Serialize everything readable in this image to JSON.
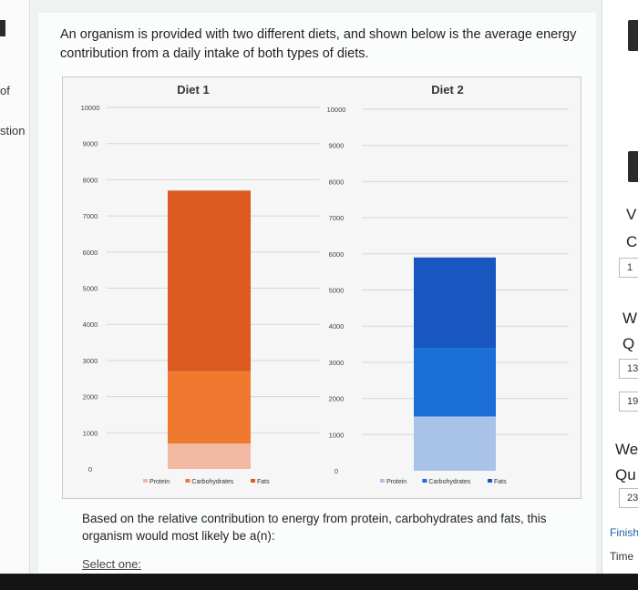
{
  "left_sidebar": {
    "text_top": "of",
    "text_mid": "stion"
  },
  "question": {
    "text": "An organism is provided with two different diets, and shown below is the average energy contribution from a daily intake of both types of diets."
  },
  "chart_data": [
    {
      "type": "bar",
      "stacked": true,
      "title": "Diet 1",
      "categories": [
        "Diet 1"
      ],
      "series": [
        {
          "name": "Protein",
          "values": [
            700
          ],
          "color": "#f2b9a2"
        },
        {
          "name": "Carbohydrates",
          "values": [
            2000
          ],
          "color": "#ef7a2f"
        },
        {
          "name": "Fats",
          "values": [
            5000
          ],
          "color": "#dc5a1f"
        }
      ],
      "ylim": [
        0,
        10000
      ],
      "yticks": [
        "0",
        "1000",
        "2000",
        "3000",
        "4000",
        "5000",
        "6000",
        "7000",
        "8000",
        "9000",
        "10000"
      ],
      "legend": [
        "Protein",
        "Carbohydrates",
        "Fats"
      ],
      "legend_position": "bottom",
      "grid": true
    },
    {
      "type": "bar",
      "stacked": true,
      "title": "Diet 2",
      "categories": [
        "Diet 2"
      ],
      "series": [
        {
          "name": "Protein",
          "values": [
            1500
          ],
          "color": "#a9c3e8"
        },
        {
          "name": "Carbohydrates",
          "values": [
            1900
          ],
          "color": "#1d6fd8"
        },
        {
          "name": "Fats",
          "values": [
            2500
          ],
          "color": "#1757bf"
        }
      ],
      "ylim": [
        0,
        10000
      ],
      "yticks": [
        "0",
        "1000",
        "2000",
        "3000",
        "4000",
        "5000",
        "6000",
        "7000",
        "8000",
        "9000",
        "10000"
      ],
      "legend": [
        "Protein",
        "Carbohydrates",
        "Fats"
      ],
      "legend_position": "bottom",
      "grid": true
    }
  ],
  "prompt": {
    "text": "Based on the relative contribution to energy from protein, carbohydrates and fats, this organism would most likely be a(n):"
  },
  "select": {
    "label": "Select one:"
  },
  "right_sidebar": {
    "letters": [
      "V",
      "C",
      "W",
      "Q",
      "We",
      "Qu"
    ],
    "boxes": [
      "1",
      "13",
      "19",
      "23"
    ],
    "finish": "Finish",
    "time": "Time"
  }
}
